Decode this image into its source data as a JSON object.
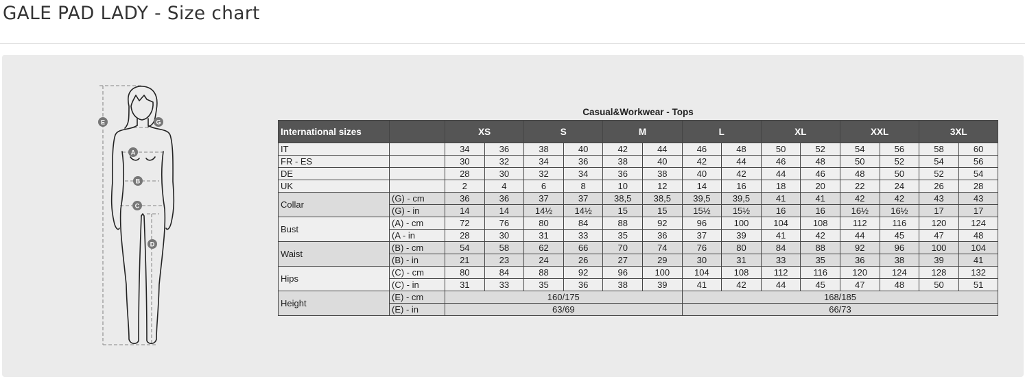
{
  "page": {
    "title": "GALE PAD LADY - Size chart"
  },
  "figure": {
    "markers": [
      "E",
      "G",
      "A",
      "B",
      "C",
      "D"
    ]
  },
  "table": {
    "title": "Casual&Workwear - Tops",
    "header_label": "International sizes",
    "sizes": [
      "XS",
      "S",
      "M",
      "L",
      "XL",
      "XXL",
      "3XL"
    ],
    "country_rows": [
      {
        "label": "IT",
        "values": [
          "34",
          "36",
          "38",
          "40",
          "42",
          "44",
          "46",
          "48",
          "50",
          "52",
          "54",
          "56",
          "58",
          "60"
        ]
      },
      {
        "label": "FR - ES",
        "values": [
          "30",
          "32",
          "34",
          "36",
          "38",
          "40",
          "42",
          "44",
          "46",
          "48",
          "50",
          "52",
          "54",
          "56"
        ]
      },
      {
        "label": "DE",
        "values": [
          "28",
          "30",
          "32",
          "34",
          "36",
          "38",
          "40",
          "42",
          "44",
          "46",
          "48",
          "50",
          "52",
          "54"
        ]
      },
      {
        "label": "UK",
        "values": [
          "2",
          "4",
          "6",
          "8",
          "10",
          "12",
          "14",
          "16",
          "18",
          "20",
          "22",
          "24",
          "26",
          "28"
        ]
      }
    ],
    "measure_groups": [
      {
        "label": "Collar",
        "shade": "dark",
        "rows": [
          {
            "unit": "(G) - cm",
            "values": [
              "36",
              "36",
              "37",
              "37",
              "38,5",
              "38,5",
              "39,5",
              "39,5",
              "41",
              "41",
              "42",
              "42",
              "43",
              "43"
            ]
          },
          {
            "unit": "(G) - in",
            "values": [
              "14",
              "14",
              "14½",
              "14½",
              "15",
              "15",
              "15½",
              "15½",
              "16",
              "16",
              "16½",
              "16½",
              "17",
              "17"
            ]
          }
        ]
      },
      {
        "label": "Bust",
        "shade": "light",
        "rows": [
          {
            "unit": "(A) - cm",
            "values": [
              "72",
              "76",
              "80",
              "84",
              "88",
              "92",
              "96",
              "100",
              "104",
              "108",
              "112",
              "116",
              "120",
              "124"
            ]
          },
          {
            "unit": "(A - in",
            "values": [
              "28",
              "30",
              "31",
              "33",
              "35",
              "36",
              "37",
              "39",
              "41",
              "42",
              "44",
              "45",
              "47",
              "48"
            ]
          }
        ]
      },
      {
        "label": "Waist",
        "shade": "dark",
        "rows": [
          {
            "unit": "(B) - cm",
            "values": [
              "54",
              "58",
              "62",
              "66",
              "70",
              "74",
              "76",
              "80",
              "84",
              "88",
              "92",
              "96",
              "100",
              "104"
            ]
          },
          {
            "unit": "(B) - in",
            "values": [
              "21",
              "23",
              "24",
              "26",
              "27",
              "29",
              "30",
              "31",
              "33",
              "35",
              "36",
              "38",
              "39",
              "41"
            ]
          }
        ]
      },
      {
        "label": "Hips",
        "shade": "light",
        "rows": [
          {
            "unit": "(C) - cm",
            "values": [
              "80",
              "84",
              "88",
              "92",
              "96",
              "100",
              "104",
              "108",
              "112",
              "116",
              "120",
              "124",
              "128",
              "132"
            ]
          },
          {
            "unit": "(C) - in",
            "values": [
              "31",
              "33",
              "35",
              "36",
              "38",
              "39",
              "41",
              "42",
              "44",
              "45",
              "47",
              "48",
              "50",
              "51"
            ]
          }
        ]
      }
    ],
    "height": {
      "label": "Height",
      "rows": [
        {
          "unit": "(E) - cm",
          "values": [
            "160/175",
            "168/185"
          ]
        },
        {
          "unit": "(E) - in",
          "values": [
            "63/69",
            "66/73"
          ]
        }
      ]
    }
  }
}
